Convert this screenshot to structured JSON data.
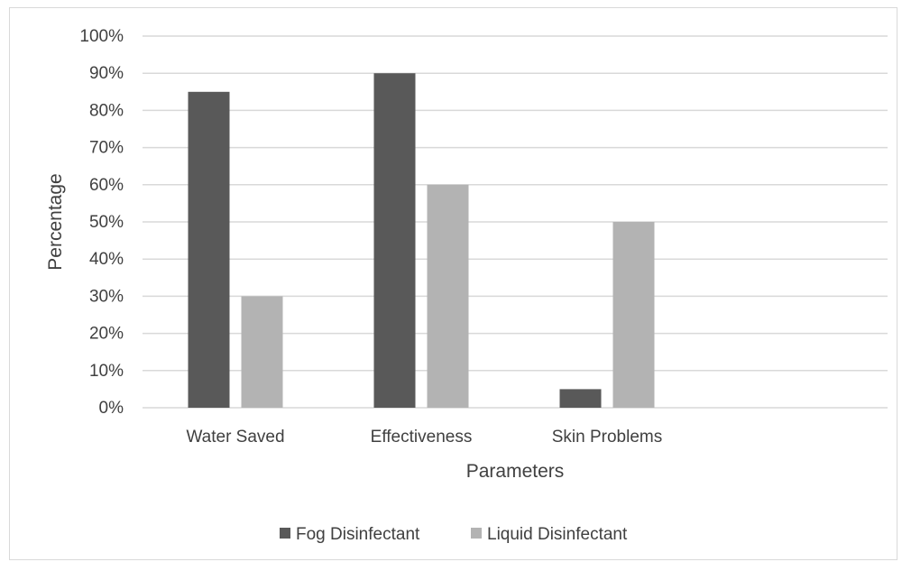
{
  "chart_data": {
    "type": "bar",
    "title": "",
    "xlabel": "Parameters",
    "ylabel": "Percentage",
    "categories": [
      "Water Saved",
      "Effectiveness",
      "Skin Problems"
    ],
    "series": [
      {
        "name": "Fog Disinfectant",
        "values": [
          85,
          90,
          5
        ],
        "color": "#595959"
      },
      {
        "name": "Liquid Disinfectant",
        "values": [
          30,
          60,
          50
        ],
        "color": "#b3b3b3"
      }
    ],
    "ylim": [
      0,
      100
    ],
    "yticks": [
      "0%",
      "10%",
      "20%",
      "30%",
      "40%",
      "50%",
      "60%",
      "70%",
      "80%",
      "90%",
      "100%"
    ],
    "grid": true,
    "legend_position": "bottom",
    "colors": {
      "gridline": "#d9d9d9",
      "text": "#404040",
      "frame": "#d9d9d9"
    }
  }
}
